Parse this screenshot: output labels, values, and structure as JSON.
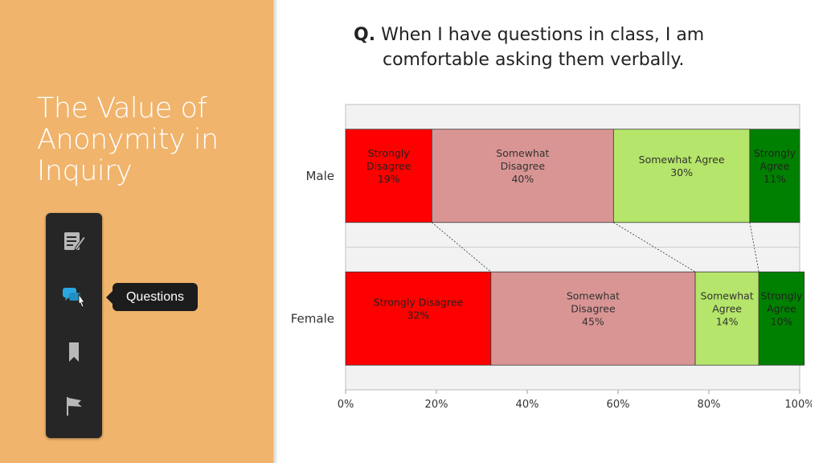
{
  "slide": {
    "title": "The Value of Anonymity in Inquiry",
    "question_prefix": "Q.",
    "question_line1": "When I have questions in class, I am",
    "question_line2": "comfortable asking them verbally.",
    "tooltip": "Questions"
  },
  "toolbar": {
    "icons": [
      "notes-icon",
      "questions-icon",
      "bookmark-icon",
      "flag-icon"
    ]
  },
  "colors": {
    "panel": "#F0B46C",
    "strongly_disagree": "#FF0000",
    "somewhat_disagree": "#D99594",
    "somewhat_agree": "#B5E56A",
    "strongly_agree": "#008000"
  },
  "chart_data": {
    "type": "bar",
    "orientation": "horizontal",
    "stacked": "percent",
    "categories": [
      "Male",
      "Female"
    ],
    "series": [
      {
        "name": "Strongly Disagree",
        "values": [
          19,
          32
        ],
        "color": "#FF0000",
        "segment_labels": [
          "Strongly\nDisagree\n19%",
          "Strongly Disagree\n32%"
        ]
      },
      {
        "name": "Somewhat Disagree",
        "values": [
          40,
          45
        ],
        "color": "#D99594",
        "segment_labels": [
          "Somewhat\nDisagree\n40%",
          "Somewhat\nDisagree\n45%"
        ]
      },
      {
        "name": "Somewhat Agree",
        "values": [
          30,
          14
        ],
        "color": "#B5E56A",
        "segment_labels": [
          "Somewhat Agree\n30%",
          "Somewhat\nAgree\n14%"
        ]
      },
      {
        "name": "Strongly Agree",
        "values": [
          11,
          10
        ],
        "color": "#008000",
        "segment_labels": [
          "Strongly\nAgree\n11%",
          "Strongly\nAgree\n10%"
        ]
      }
    ],
    "xticks": [
      "0%",
      "20%",
      "40%",
      "60%",
      "80%",
      "100%"
    ],
    "xlim": [
      0,
      100
    ],
    "series_lines": true,
    "legend": "none"
  }
}
